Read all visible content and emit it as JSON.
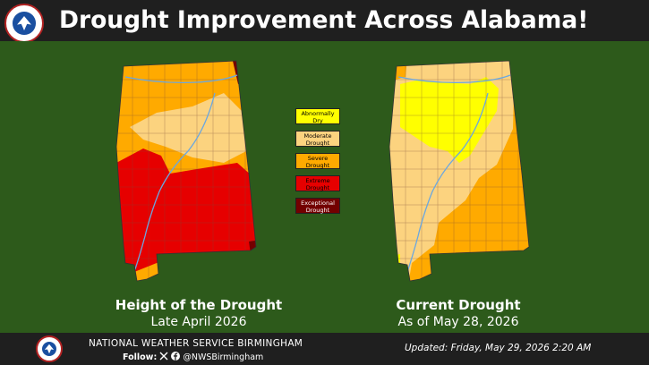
{
  "header": {
    "title": "Drought Improvement Across Alabama!",
    "logo_text": "NATIONAL WEATHER SERVICE"
  },
  "colors": {
    "background": "#2d5a1b",
    "abnormally_dry": "#ffff00",
    "moderate_drought": "#fcd37f",
    "severe_drought": "#ffaa00",
    "extreme_drought": "#e60000",
    "exceptional_drought": "#730000"
  },
  "legend": {
    "items": [
      {
        "label": "Abnormally Dry",
        "color": "#ffff00"
      },
      {
        "label": "Moderate Drought",
        "color": "#fcd37f"
      },
      {
        "label": "Severe Drought",
        "color": "#ffaa00"
      },
      {
        "label": "Extreme Drought",
        "color": "#e60000"
      },
      {
        "label": "Exceptional Drought",
        "color": "#730000"
      }
    ]
  },
  "left_map": {
    "caption_title": "Height of the Drought",
    "caption_date": "Late April 2026"
  },
  "right_map": {
    "caption_title": "Current Drought",
    "caption_date": "As of May 28, 2026"
  },
  "footer": {
    "office": "NATIONAL WEATHER SERVICE BIRMINGHAM",
    "follow_label": "Follow:",
    "handle": "@NWSBirmingham",
    "updated": "Updated:  Friday, May 29, 2026 2:20 AM"
  }
}
